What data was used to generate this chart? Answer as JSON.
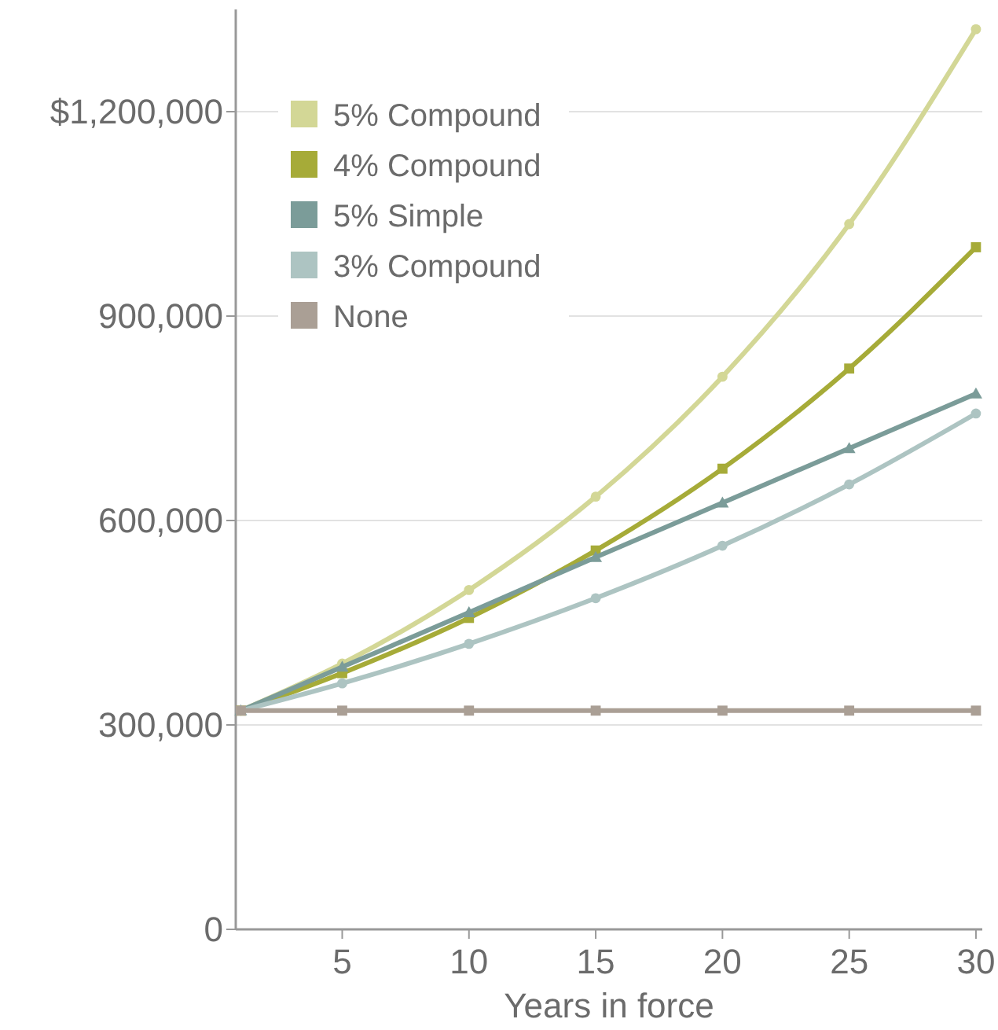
{
  "chart_data": {
    "type": "line",
    "xlabel": "Years in force",
    "x": [
      1,
      5,
      10,
      15,
      20,
      25,
      30
    ],
    "series": [
      {
        "name": "5% Compound",
        "color": "#d3d796",
        "marker": "circle",
        "values": [
          321000,
          390000,
          498000,
          635000,
          811000,
          1035000,
          1321000
        ]
      },
      {
        "name": "4% Compound",
        "color": "#a6ab38",
        "marker": "square",
        "values": [
          321000,
          376000,
          457000,
          556000,
          676000,
          823000,
          1001000
        ]
      },
      {
        "name": "5% Simple",
        "color": "#7b9c99",
        "marker": "triangle",
        "values": [
          321000,
          385000,
          465000,
          546000,
          626000,
          706000,
          786000
        ]
      },
      {
        "name": "3% Compound",
        "color": "#adc4c2",
        "marker": "circle",
        "values": [
          321000,
          361000,
          419000,
          486000,
          563000,
          653000,
          757000
        ]
      },
      {
        "name": "None",
        "color": "#aa9f95",
        "marker": "square",
        "values": [
          321000,
          321000,
          321000,
          321000,
          321000,
          321000,
          321000
        ]
      }
    ],
    "xlim": [
      0.8,
      30.25
    ],
    "xticks": [
      5,
      10,
      15,
      20,
      25,
      30
    ],
    "ylim": [
      0,
      1350000
    ],
    "yticks": [
      0,
      {
        "value": 300000,
        "label": "300,000"
      },
      {
        "value": 600000,
        "label": "600,000"
      },
      {
        "value": 900000,
        "label": "900,000"
      },
      {
        "value": 1200000,
        "label": "$1,200,000"
      }
    ],
    "grid": "y",
    "legend": "top left",
    "line_style": "solid"
  }
}
